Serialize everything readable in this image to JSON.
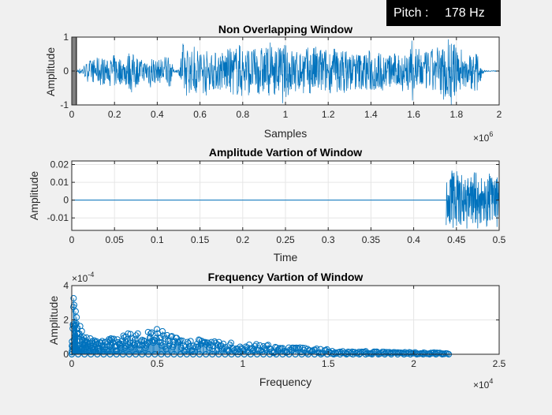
{
  "pitch": {
    "label": "Pitch :",
    "value": "178 Hz"
  },
  "chart_data": [
    {
      "type": "line",
      "title": "Non Overlapping Window",
      "xlabel": "Samples",
      "ylabel": "Amplitude",
      "xlim": [
        0,
        2000000
      ],
      "ylim": [
        -1,
        1
      ],
      "x_exponent_label": "×10",
      "x_exponent": "6",
      "x_ticks": [
        0,
        200000,
        400000,
        600000,
        800000,
        1000000,
        1200000,
        1400000,
        1600000,
        1800000,
        2000000
      ],
      "x_tick_labels": [
        "0",
        "0.2",
        "0.4",
        "0.6",
        "0.8",
        "1",
        "1.2",
        "1.4",
        "1.6",
        "1.8",
        "2"
      ],
      "y_ticks": [
        -1,
        0,
        1
      ],
      "y_tick_labels": [
        "-1",
        "0",
        "1"
      ],
      "grid": true,
      "highlight_window": [
        0,
        22000
      ],
      "envelope": {
        "x": [
          0,
          30000,
          60000,
          100000,
          140000,
          170000,
          200000,
          240000,
          270000,
          300000,
          340000,
          370000,
          400000,
          430000,
          460000,
          475000,
          500000,
          520000,
          560000,
          600000,
          650000,
          700000,
          750000,
          800000,
          850000,
          900000,
          950000,
          1000000,
          1050000,
          1100000,
          1150000,
          1200000,
          1250000,
          1300000,
          1350000,
          1400000,
          1450000,
          1500000,
          1550000,
          1600000,
          1650000,
          1700000,
          1720000,
          1750000,
          1780000,
          1800000,
          1830000,
          1860000,
          1890000,
          1920000,
          1930000,
          2000000
        ],
        "amp": [
          0.02,
          0.05,
          0.2,
          0.35,
          0.45,
          0.3,
          0.5,
          0.35,
          0.6,
          0.45,
          0.3,
          0.55,
          0.3,
          0.45,
          0.5,
          0.05,
          0.05,
          0.85,
          0.6,
          0.75,
          0.55,
          0.6,
          0.7,
          0.8,
          0.65,
          0.75,
          0.7,
          0.8,
          0.6,
          0.7,
          0.75,
          0.65,
          0.7,
          0.6,
          0.55,
          0.65,
          0.55,
          0.5,
          0.6,
          0.75,
          0.55,
          0.7,
          0.65,
          0.95,
          0.9,
          0.7,
          0.55,
          0.5,
          0.6,
          0.15,
          0.02,
          0.01
        ]
      },
      "series": [
        {
          "color": "#0072bd"
        }
      ]
    },
    {
      "type": "line",
      "title": "Amplitude Vartion of Window",
      "xlabel": "Time",
      "ylabel": "Amplitude",
      "xlim": [
        0,
        0.5
      ],
      "ylim": [
        -0.017,
        0.022
      ],
      "x_ticks": [
        0,
        0.05,
        0.1,
        0.15,
        0.2,
        0.25,
        0.3,
        0.35,
        0.4,
        0.45,
        0.5
      ],
      "x_tick_labels": [
        "0",
        "0.05",
        "0.1",
        "0.15",
        "0.2",
        "0.25",
        "0.3",
        "0.35",
        "0.4",
        "0.45",
        "0.5"
      ],
      "y_ticks": [
        -0.01,
        0,
        0.01,
        0.02
      ],
      "y_tick_labels": [
        "-0.01",
        "0",
        "0.01",
        "0.02"
      ],
      "grid": true,
      "signal_start": 0.438,
      "signal_amp": 0.018,
      "series": [
        {
          "color": "#0072bd"
        }
      ]
    },
    {
      "type": "scatter",
      "title": "Frequency Vartion of Window",
      "xlabel": "Frequency",
      "ylabel": "Amplitude",
      "xlim": [
        0,
        25000
      ],
      "ylim": [
        0,
        0.0004
      ],
      "x_exponent_label": "×10",
      "x_exponent": "4",
      "y_exponent_label": "×10",
      "y_exponent": "-4",
      "x_ticks": [
        0,
        5000,
        10000,
        15000,
        20000,
        25000
      ],
      "x_tick_labels": [
        "0",
        "0.5",
        "1",
        "1.5",
        "2",
        "2.5"
      ],
      "y_ticks": [
        0,
        0.0002,
        0.0004
      ],
      "y_tick_labels": [
        "0",
        "2",
        "4"
      ],
      "grid": true,
      "marker": "circle",
      "x_max": 22050,
      "envelope": {
        "x": [
          0,
          100,
          150,
          250,
          400,
          600,
          800,
          1200,
          1600,
          2000,
          2500,
          3000,
          3200,
          3400,
          3800,
          4500,
          5000,
          6000,
          7000,
          8000,
          9000,
          10000,
          11000,
          12000,
          13000,
          14000,
          15000,
          16000,
          18000,
          20000,
          22050
        ],
        "amp": [
          8e-05,
          0.00034,
          0.00035,
          0.00028,
          0.0002,
          0.00014,
          0.0001,
          9e-05,
          8e-05,
          0.0001,
          9e-05,
          0.00013,
          0.00018,
          0.00012,
          0.00012,
          0.00013,
          0.00015,
          0.0001,
          9e-05,
          8e-05,
          7e-05,
          6e-05,
          6e-05,
          5e-05,
          4e-05,
          4e-05,
          3e-05,
          2e-05,
          1.5e-05,
          1.2e-05,
          1e-05
        ]
      },
      "series": [
        {
          "color": "#0072bd"
        }
      ]
    }
  ]
}
